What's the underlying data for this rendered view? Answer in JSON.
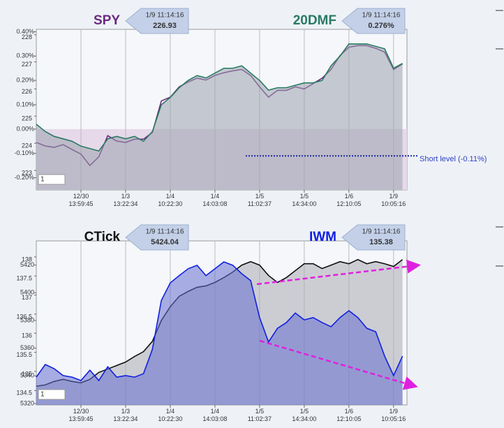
{
  "chart_data": [
    {
      "type": "line",
      "xlim": [
        0,
        41.5
      ],
      "xticks": [
        {
          "value": 5,
          "label": "12/30\n13:59:45"
        },
        {
          "value": 10,
          "label": "1/3\n13:22:34"
        },
        {
          "value": 15,
          "label": "1/4\n10:22:30"
        },
        {
          "value": 20,
          "label": "1/4\n14:03:08"
        },
        {
          "value": 25,
          "label": "1/5\n11:02:37"
        },
        {
          "value": 30,
          "label": "1/5\n14:34:00"
        },
        {
          "value": 35,
          "label": "1/6\n12:10:05"
        },
        {
          "value": 40,
          "label": "1/9\n10:05:16"
        }
      ],
      "ylim": [
        -0.25,
        0.41
      ],
      "yticks": [
        {
          "value": -0.2,
          "label": "-0.20%"
        },
        {
          "value": -0.1,
          "label": "-0.10%"
        },
        {
          "value": 0,
          "label": "0.00%"
        },
        {
          "value": 0.1,
          "label": "0.10%"
        },
        {
          "value": 0.2,
          "label": "0.20%"
        },
        {
          "value": 0.3,
          "label": "0.30%"
        },
        {
          "value": 0.4,
          "label": "0.40%"
        }
      ],
      "y2lim": [
        222.28,
        228.2
      ],
      "y2ticks": [
        223,
        224,
        225,
        226,
        227,
        228
      ],
      "grid": true,
      "short_level": {
        "value": -0.11,
        "label": "Short level (-0.11%)"
      },
      "input": 1,
      "series": [
        {
          "name": "SPY",
          "color": "#6b2a80",
          "axis": "y2",
          "badge_time": "1/9 11:14:16",
          "badge_value": "226.93",
          "values": [
            224.03,
            223.9,
            223.85,
            223.95,
            223.77,
            223.6,
            223.18,
            223.5,
            224.28,
            224.08,
            224.03,
            224.15,
            224.15,
            224.4,
            225.56,
            225.7,
            226.08,
            226.26,
            226.4,
            226.33,
            226.5,
            226.6,
            226.67,
            226.72,
            226.5,
            226.08,
            225.7,
            225.95,
            225.95,
            226.08,
            226.0,
            226.2,
            226.4,
            226.72,
            227.23,
            227.54,
            227.6,
            227.6,
            227.5,
            227.36,
            226.72,
            226.92
          ]
        },
        {
          "name": "20DMF",
          "color": "#2a7a62",
          "fill": "#9aa3ad",
          "badge_time": "1/9 11:14:16",
          "badge_value": "0.276%",
          "values": [
            0.02,
            -0.01,
            -0.03,
            -0.04,
            -0.05,
            -0.07,
            -0.08,
            -0.09,
            -0.04,
            -0.03,
            -0.04,
            -0.03,
            -0.05,
            -0.01,
            0.1,
            0.13,
            0.17,
            0.2,
            0.22,
            0.21,
            0.23,
            0.25,
            0.25,
            0.26,
            0.23,
            0.2,
            0.16,
            0.17,
            0.17,
            0.18,
            0.19,
            0.19,
            0.2,
            0.26,
            0.3,
            0.35,
            0.35,
            0.35,
            0.34,
            0.33,
            0.25,
            0.27
          ]
        }
      ]
    },
    {
      "type": "line",
      "xlim": [
        0,
        41.5
      ],
      "xticks": [
        {
          "value": 5,
          "label": "12/30\n13:59:45"
        },
        {
          "value": 10,
          "label": "1/3\n13:22:34"
        },
        {
          "value": 15,
          "label": "1/4\n10:22:30"
        },
        {
          "value": 20,
          "label": "1/4\n14:03:08"
        },
        {
          "value": 25,
          "label": "1/5\n11:02:37"
        },
        {
          "value": 30,
          "label": "1/5\n14:34:00"
        },
        {
          "value": 35,
          "label": "1/6\n12:10:05"
        },
        {
          "value": 40,
          "label": "1/9\n10:05:16"
        }
      ],
      "ylim": [
        5319,
        5437.5
      ],
      "yticks": [
        5320,
        5340,
        5360,
        5380,
        5400,
        5420
      ],
      "y2lim": [
        134.12,
        138.42
      ],
      "y2ticks": [
        134.5,
        135,
        135.5,
        136,
        136.5,
        137,
        137.5,
        138
      ],
      "grid": true,
      "input": 1,
      "series": [
        {
          "name": "CTick",
          "color": "#111111",
          "fill": "#a9acb2",
          "badge_time": "1/9 11:14:16",
          "badge_value": "5424.04",
          "values": [
            5332.5,
            5333.5,
            5336,
            5337.5,
            5336,
            5335,
            5337.5,
            5342.5,
            5345,
            5347.5,
            5350,
            5354,
            5357.5,
            5365,
            5380,
            5390,
            5397.5,
            5401,
            5404,
            5405,
            5407.5,
            5411,
            5415,
            5420,
            5422.5,
            5420,
            5412.5,
            5407.5,
            5411,
            5416,
            5421,
            5421,
            5417.5,
            5420,
            5422.5,
            5421,
            5424,
            5421,
            5422.5,
            5421,
            5419,
            5424
          ]
        },
        {
          "name": "IWM",
          "color": "#1020e0",
          "fill": "#6670d0",
          "axis": "y2",
          "badge_time": "1/9 11:14:16",
          "badge_value": "135.38",
          "values": [
            134.85,
            135.18,
            135.07,
            134.89,
            134.85,
            134.76,
            135.03,
            134.76,
            135.12,
            134.85,
            134.89,
            134.85,
            134.94,
            135.58,
            136.86,
            137.32,
            137.51,
            137.69,
            137.78,
            137.51,
            137.69,
            137.87,
            137.78,
            137.56,
            137.38,
            136.41,
            135.77,
            136.13,
            136.28,
            136.53,
            136.35,
            136.41,
            136.28,
            136.17,
            136.41,
            136.59,
            136.41,
            136.13,
            136.04,
            135.4,
            134.89,
            135.4
          ]
        }
      ]
    }
  ]
}
